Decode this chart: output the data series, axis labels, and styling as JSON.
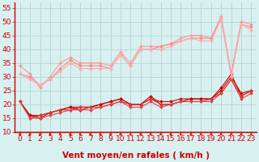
{
  "title": "",
  "xlabel": "Vent moyen/en rafales ( km/h )",
  "ylabel": "",
  "background_color": "#d8f0f0",
  "grid_color": "#b8d8d8",
  "xlim": [
    -0.5,
    23.5
  ],
  "ylim": [
    10,
    57
  ],
  "yticks": [
    10,
    15,
    20,
    25,
    30,
    35,
    40,
    45,
    50,
    55
  ],
  "xticks": [
    0,
    1,
    2,
    3,
    4,
    5,
    6,
    7,
    8,
    9,
    10,
    11,
    12,
    13,
    14,
    15,
    16,
    17,
    18,
    19,
    20,
    21,
    22,
    23
  ],
  "series": [
    {
      "x": [
        0,
        1,
        2,
        3,
        4,
        5,
        6,
        7,
        8,
        9,
        10,
        11,
        12,
        13,
        14,
        15,
        16,
        17,
        18,
        19,
        20,
        21,
        22,
        23
      ],
      "y": [
        21,
        16,
        15,
        17,
        18,
        19,
        18,
        19,
        20,
        21,
        22,
        20,
        20,
        23,
        20,
        20,
        21,
        22,
        22,
        22,
        26,
        31,
        23,
        25
      ],
      "color": "#cc0000",
      "lw": 0.8,
      "marker": "D",
      "ms": 2.0
    },
    {
      "x": [
        0,
        1,
        2,
        3,
        4,
        5,
        6,
        7,
        8,
        9,
        10,
        11,
        12,
        13,
        14,
        15,
        16,
        17,
        18,
        19,
        20,
        21,
        22,
        23
      ],
      "y": [
        21,
        16,
        16,
        17,
        18,
        19,
        19,
        19,
        20,
        21,
        22,
        20,
        20,
        22,
        21,
        21,
        22,
        22,
        22,
        22,
        25,
        30,
        24,
        25
      ],
      "color": "#cc0000",
      "lw": 0.8,
      "marker": "D",
      "ms": 2.0
    },
    {
      "x": [
        0,
        1,
        2,
        3,
        4,
        5,
        6,
        7,
        8,
        9,
        10,
        11,
        12,
        13,
        14,
        15,
        16,
        17,
        18,
        19,
        20,
        21,
        22,
        23
      ],
      "y": [
        21,
        15,
        16,
        17,
        18,
        18,
        19,
        19,
        19,
        20,
        21,
        20,
        20,
        22,
        20,
        20,
        21,
        21,
        21,
        22,
        24,
        29,
        23,
        25
      ],
      "color": "#dd3333",
      "lw": 0.8,
      "marker": "D",
      "ms": 2.0
    },
    {
      "x": [
        0,
        1,
        2,
        3,
        4,
        5,
        6,
        7,
        8,
        9,
        10,
        11,
        12,
        13,
        14,
        15,
        16,
        17,
        18,
        19,
        20,
        21,
        22,
        23
      ],
      "y": [
        21,
        15,
        15,
        16,
        17,
        18,
        18,
        18,
        19,
        20,
        21,
        19,
        19,
        21,
        19,
        20,
        21,
        21,
        21,
        21,
        24,
        29,
        22,
        24
      ],
      "color": "#dd4444",
      "lw": 0.8,
      "marker": "D",
      "ms": 2.0
    },
    {
      "x": [
        0,
        1,
        2,
        3,
        4,
        5,
        6,
        7,
        8,
        9,
        10,
        11,
        12,
        13,
        14,
        15,
        16,
        17,
        18,
        19,
        20,
        21,
        22,
        23
      ],
      "y": [
        34,
        31,
        26,
        30,
        35,
        37,
        35,
        35,
        35,
        34,
        39,
        35,
        41,
        41,
        41,
        42,
        44,
        45,
        45,
        44,
        52,
        31,
        50,
        49
      ],
      "color": "#ff9999",
      "lw": 0.8,
      "marker": "D",
      "ms": 2.0
    },
    {
      "x": [
        0,
        1,
        2,
        3,
        4,
        5,
        6,
        7,
        8,
        9,
        10,
        11,
        12,
        13,
        14,
        15,
        16,
        17,
        18,
        19,
        20,
        21,
        22,
        23
      ],
      "y": [
        31,
        30,
        27,
        29,
        33,
        36,
        34,
        34,
        34,
        33,
        38,
        34,
        40,
        40,
        41,
        42,
        43,
        44,
        44,
        44,
        51,
        31,
        49,
        48
      ],
      "color": "#ff8888",
      "lw": 0.8,
      "marker": "D",
      "ms": 2.0
    },
    {
      "x": [
        0,
        1,
        2,
        3,
        4,
        5,
        6,
        7,
        8,
        9,
        10,
        11,
        12,
        13,
        14,
        15,
        16,
        17,
        18,
        19,
        20,
        21,
        22,
        23
      ],
      "y": [
        31,
        29,
        27,
        29,
        32,
        35,
        33,
        33,
        33,
        33,
        38,
        34,
        40,
        40,
        40,
        41,
        43,
        44,
        43,
        43,
        51,
        30,
        49,
        47
      ],
      "color": "#ffaaaa",
      "lw": 0.8,
      "marker": "D",
      "ms": 2.0
    }
  ],
  "line_color": "#cc0000",
  "xlabel_color": "#cc0000",
  "xlabel_fontsize": 7.5,
  "tick_color": "#cc0000",
  "tick_fontsize": 6.5
}
